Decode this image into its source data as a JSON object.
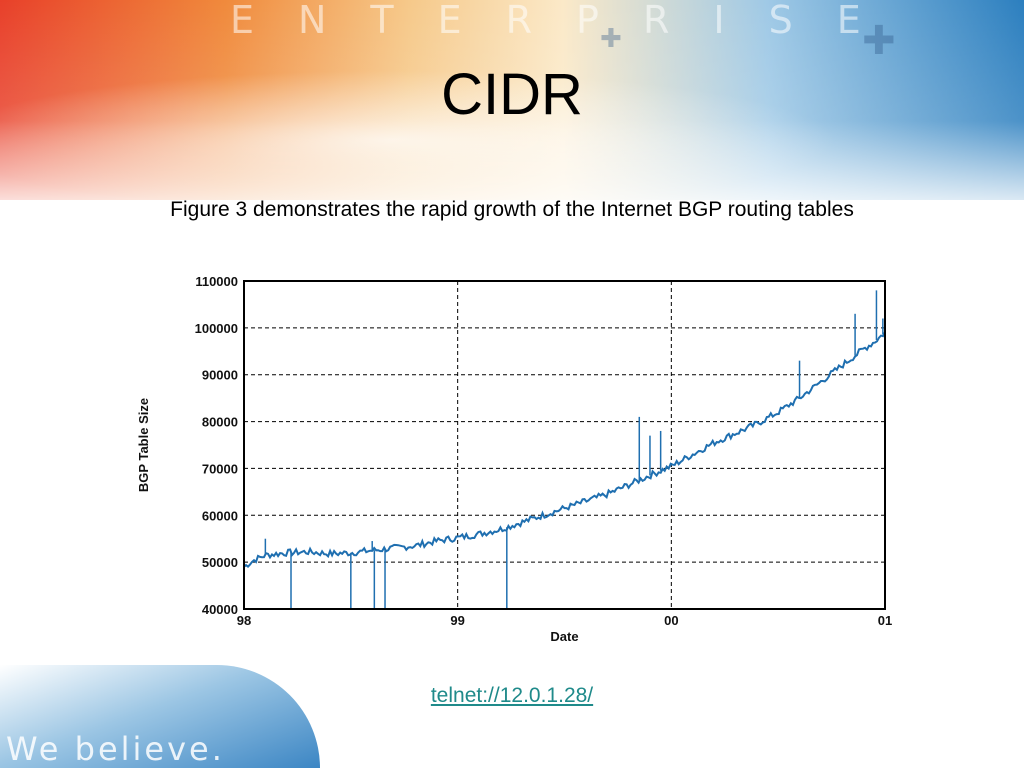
{
  "slide": {
    "title": "CIDR",
    "subtitle": "Figure 3 demonstrates the rapid growth of the Internet BGP routing tables",
    "link_text": "telnet://12.0.1.28/",
    "branding_top": "ENTERPRISE",
    "branding_bottom": "We believe."
  },
  "colors": {
    "series": "#1f6fb0",
    "link": "#1f8a8a",
    "grid": "#000000"
  },
  "chart_data": {
    "type": "line",
    "title": "",
    "xlabel": "Date",
    "ylabel": "BGP Table Size",
    "x_ticks": [
      "98",
      "99",
      "00",
      "01"
    ],
    "y_ticks": [
      "40000",
      "50000",
      "60000",
      "70000",
      "80000",
      "90000",
      "100000",
      "110000"
    ],
    "xlim": [
      1998.0,
      2001.0
    ],
    "ylim": [
      40000,
      110000
    ],
    "grid": true,
    "series": [
      {
        "x": [
          1998.0,
          1998.05,
          1998.1,
          1998.2,
          1998.3,
          1998.4,
          1998.5,
          1998.6,
          1998.7,
          1998.8,
          1998.9,
          1999.0,
          1999.1,
          1999.2,
          1999.3,
          1999.4,
          1999.5,
          1999.6,
          1999.7,
          1999.8,
          1999.9,
          2000.0,
          2000.1,
          2000.2,
          2000.3,
          2000.4,
          2000.5,
          2000.6,
          2000.7,
          2000.8,
          2000.9,
          2000.95,
          2001.0
        ],
        "values": [
          49000,
          50500,
          51500,
          52000,
          52200,
          51800,
          52000,
          52500,
          53000,
          53500,
          54500,
          55200,
          56000,
          57000,
          58500,
          60000,
          61500,
          63000,
          64500,
          66500,
          68500,
          70500,
          73000,
          75500,
          77500,
          79500,
          82000,
          85000,
          88500,
          92000,
          95500,
          97000,
          99000
        ]
      }
    ],
    "spikes": [
      {
        "x": 1998.1,
        "value": 55000
      },
      {
        "x": 1998.6,
        "value": 54500
      },
      {
        "x": 1999.85,
        "value": 81000
      },
      {
        "x": 1999.9,
        "value": 77000
      },
      {
        "x": 1999.95,
        "value": 78000
      },
      {
        "x": 2000.6,
        "value": 93000
      },
      {
        "x": 2000.86,
        "value": 103000
      },
      {
        "x": 2000.96,
        "value": 108000
      },
      {
        "x": 2000.99,
        "value": 102000
      }
    ],
    "dips": [
      {
        "x": 1998.22,
        "value": 40000
      },
      {
        "x": 1998.5,
        "value": 40000
      },
      {
        "x": 1998.61,
        "value": 40000
      },
      {
        "x": 1998.66,
        "value": 40000
      },
      {
        "x": 1999.23,
        "value": 40000
      }
    ]
  }
}
